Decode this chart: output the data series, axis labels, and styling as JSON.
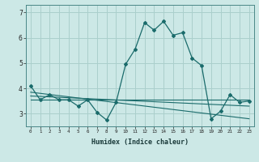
{
  "xlabel": "Humidex (Indice chaleur)",
  "ylabel": "",
  "background_color": "#cce8e6",
  "grid_color": "#aacfcc",
  "line_color": "#1a6b6b",
  "xlim": [
    -0.5,
    23.5
  ],
  "ylim": [
    2.5,
    7.3
  ],
  "yticks": [
    3,
    4,
    5,
    6,
    7
  ],
  "xticks": [
    0,
    1,
    2,
    3,
    4,
    5,
    6,
    7,
    8,
    9,
    10,
    11,
    12,
    13,
    14,
    15,
    16,
    17,
    18,
    19,
    20,
    21,
    22,
    23
  ],
  "main_x": [
    0,
    1,
    2,
    3,
    4,
    5,
    6,
    7,
    8,
    9,
    10,
    11,
    12,
    13,
    14,
    15,
    16,
    17,
    18,
    19,
    20,
    21,
    22,
    23
  ],
  "main_y": [
    4.1,
    3.55,
    3.75,
    3.55,
    3.55,
    3.3,
    3.55,
    3.05,
    2.75,
    3.45,
    4.95,
    5.55,
    6.6,
    6.3,
    6.65,
    6.1,
    6.2,
    5.2,
    4.9,
    2.8,
    3.1,
    3.75,
    3.45,
    3.5
  ],
  "trend1_x": [
    0,
    23
  ],
  "trend1_y": [
    3.55,
    3.55
  ],
  "trend2_x": [
    0,
    23
  ],
  "trend2_y": [
    3.85,
    2.8
  ],
  "trend3_x": [
    0,
    23
  ],
  "trend3_y": [
    3.7,
    3.3
  ]
}
